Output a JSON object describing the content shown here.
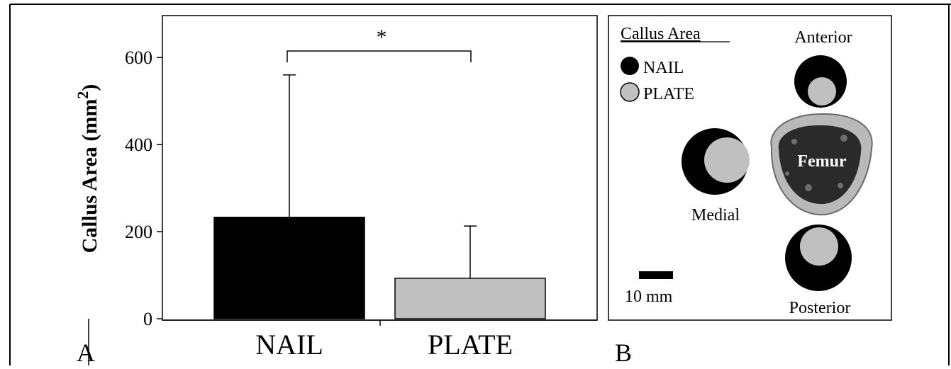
{
  "panel_a": {
    "label": "A",
    "significance_marker": "*"
  },
  "panel_b": {
    "label": "B",
    "legend": {
      "title": "Callus Area",
      "items": [
        {
          "label": "NAIL",
          "color": "#000000"
        },
        {
          "label": "PLATE",
          "color": "#c0c0c0"
        }
      ]
    },
    "positions": {
      "anterior": "Anterior",
      "medial": "Medial",
      "posterior": "Posterior"
    },
    "femur_label": "Femur",
    "scale_bar_label": "10 mm",
    "colors": {
      "nail": "#000000",
      "plate": "#c0c0c0",
      "femur_outer": "#b9b9b9",
      "femur_inner": "#2a2a2a"
    }
  },
  "chart_data": {
    "type": "bar",
    "categories": [
      "NAIL",
      "PLATE"
    ],
    "values": [
      233,
      93
    ],
    "error_upper": [
      560,
      213
    ],
    "colors": [
      "#000000",
      "#c0c0c0"
    ],
    "ylabel": "Callus Area (mm",
    "ylabel_superscript": "2",
    "ylabel_close": ")",
    "ylim": [
      0,
      700
    ],
    "yticks": [
      0,
      200,
      400,
      600
    ],
    "ytick_labels": [
      "0",
      "200",
      "400",
      "600"
    ],
    "grid": false
  }
}
